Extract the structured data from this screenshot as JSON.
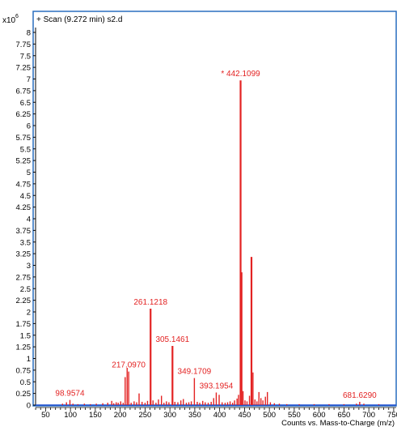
{
  "window": {
    "scale_exponent_label": "x10",
    "scale_exponent_power": "6",
    "scan_title": "+ Scan (9.272 min) s2.d"
  },
  "colors": {
    "spectrum": "#e32222",
    "frame_blue": "#2a6fbf",
    "axis": "#000000",
    "baseline_blue": "#1f4fd0",
    "text": "#000000",
    "label_red": "#e32222"
  },
  "chart_data": {
    "type": "bar",
    "title": "+ Scan (9.272 min) s2.d",
    "xlabel": "Counts vs. Mass-to-Charge (m/z)",
    "ylabel": "",
    "y_multiplier": "x10^6",
    "xlim": [
      25,
      755
    ],
    "ylim": [
      0,
      8.1
    ],
    "x_ticks": [
      50,
      100,
      150,
      200,
      250,
      300,
      350,
      400,
      450,
      500,
      550,
      600,
      650,
      700,
      750
    ],
    "y_ticks": [
      0,
      0.25,
      0.5,
      0.75,
      1,
      1.25,
      1.5,
      1.75,
      2,
      2.25,
      2.5,
      2.75,
      3,
      3.25,
      3.5,
      3.75,
      4,
      4.25,
      4.5,
      4.75,
      5,
      5.25,
      5.5,
      5.75,
      6,
      6.25,
      6.5,
      6.75,
      7,
      7.25,
      7.5,
      7.75,
      8
    ],
    "y_tick_labels": [
      "0",
      "0.25",
      "0.5",
      "0.75",
      "1",
      "1.25",
      "1.5",
      "1.75",
      "2",
      "2.25",
      "2.5",
      "2.75",
      "3",
      "3.25",
      "3.5",
      "3.75",
      "4",
      "4.25",
      "4.5",
      "4.75",
      "5",
      "5.25",
      "5.5",
      "5.75",
      "6",
      "6.25",
      "6.5",
      "6.75",
      "7",
      "7.25",
      "7.5",
      "7.75",
      "8"
    ],
    "grid": false,
    "peaks": [
      {
        "x": 84,
        "y": 0.03
      },
      {
        "x": 92,
        "y": 0.06
      },
      {
        "x": 98.9574,
        "y": 0.11
      },
      {
        "x": 105,
        "y": 0.03
      },
      {
        "x": 115,
        "y": 0.02
      },
      {
        "x": 128,
        "y": 0.03
      },
      {
        "x": 140,
        "y": 0.02
      },
      {
        "x": 152,
        "y": 0.03
      },
      {
        "x": 165,
        "y": 0.04
      },
      {
        "x": 175,
        "y": 0.05
      },
      {
        "x": 183,
        "y": 0.09
      },
      {
        "x": 187,
        "y": 0.04
      },
      {
        "x": 192,
        "y": 0.06
      },
      {
        "x": 196,
        "y": 0.05
      },
      {
        "x": 201,
        "y": 0.08
      },
      {
        "x": 206,
        "y": 0.05
      },
      {
        "x": 210,
        "y": 0.6
      },
      {
        "x": 214,
        "y": 0.8
      },
      {
        "x": 217.097,
        "y": 0.72
      },
      {
        "x": 222,
        "y": 0.05
      },
      {
        "x": 228,
        "y": 0.08
      },
      {
        "x": 233,
        "y": 0.06
      },
      {
        "x": 238,
        "y": 0.25
      },
      {
        "x": 244,
        "y": 0.07
      },
      {
        "x": 250,
        "y": 0.05
      },
      {
        "x": 255,
        "y": 0.09
      },
      {
        "x": 261.1218,
        "y": 2.07
      },
      {
        "x": 266,
        "y": 0.1
      },
      {
        "x": 272,
        "y": 0.05
      },
      {
        "x": 277,
        "y": 0.12
      },
      {
        "x": 283,
        "y": 0.2
      },
      {
        "x": 288,
        "y": 0.05
      },
      {
        "x": 293,
        "y": 0.08
      },
      {
        "x": 298,
        "y": 0.06
      },
      {
        "x": 305.1461,
        "y": 1.27
      },
      {
        "x": 310,
        "y": 0.07
      },
      {
        "x": 316,
        "y": 0.06
      },
      {
        "x": 322,
        "y": 0.1
      },
      {
        "x": 327,
        "y": 0.13
      },
      {
        "x": 333,
        "y": 0.05
      },
      {
        "x": 338,
        "y": 0.06
      },
      {
        "x": 343,
        "y": 0.08
      },
      {
        "x": 349.1709,
        "y": 0.58
      },
      {
        "x": 355,
        "y": 0.07
      },
      {
        "x": 360,
        "y": 0.05
      },
      {
        "x": 366,
        "y": 0.09
      },
      {
        "x": 371,
        "y": 0.06
      },
      {
        "x": 377,
        "y": 0.05
      },
      {
        "x": 383,
        "y": 0.07
      },
      {
        "x": 388,
        "y": 0.15
      },
      {
        "x": 393.1954,
        "y": 0.27
      },
      {
        "x": 399,
        "y": 0.22
      },
      {
        "x": 405,
        "y": 0.06
      },
      {
        "x": 411,
        "y": 0.05
      },
      {
        "x": 416,
        "y": 0.06
      },
      {
        "x": 421,
        "y": 0.08
      },
      {
        "x": 426,
        "y": 0.05
      },
      {
        "x": 430,
        "y": 0.1
      },
      {
        "x": 435,
        "y": 0.14
      },
      {
        "x": 438,
        "y": 0.22
      },
      {
        "x": 442.1099,
        "y": 6.97
      },
      {
        "x": 444,
        "y": 2.85
      },
      {
        "x": 447,
        "y": 0.3
      },
      {
        "x": 451,
        "y": 0.1
      },
      {
        "x": 455,
        "y": 0.08
      },
      {
        "x": 460,
        "y": 0.2
      },
      {
        "x": 464,
        "y": 3.18
      },
      {
        "x": 467,
        "y": 0.7
      },
      {
        "x": 471,
        "y": 0.12
      },
      {
        "x": 475,
        "y": 0.08
      },
      {
        "x": 479,
        "y": 0.28
      },
      {
        "x": 483,
        "y": 0.15
      },
      {
        "x": 487,
        "y": 0.1
      },
      {
        "x": 492,
        "y": 0.18
      },
      {
        "x": 496,
        "y": 0.28
      },
      {
        "x": 502,
        "y": 0.06
      },
      {
        "x": 510,
        "y": 0.04
      },
      {
        "x": 520,
        "y": 0.03
      },
      {
        "x": 535,
        "y": 0.02
      },
      {
        "x": 560,
        "y": 0.02
      },
      {
        "x": 590,
        "y": 0.02
      },
      {
        "x": 620,
        "y": 0.02
      },
      {
        "x": 650,
        "y": 0.02
      },
      {
        "x": 675,
        "y": 0.03
      },
      {
        "x": 681.629,
        "y": 0.07
      },
      {
        "x": 690,
        "y": 0.03
      },
      {
        "x": 720,
        "y": 0.02
      }
    ],
    "annotations": [
      {
        "x": 98.9574,
        "label": "98.9574"
      },
      {
        "x": 217.097,
        "label": "217.0970"
      },
      {
        "x": 261.1218,
        "label": "261.1218"
      },
      {
        "x": 305.1461,
        "label": "305.1461"
      },
      {
        "x": 349.1709,
        "label": "349.1709"
      },
      {
        "x": 393.1954,
        "label": "393.1954"
      },
      {
        "x": 442.1099,
        "label": "* 442.1099"
      },
      {
        "x": 681.629,
        "label": "681.6290"
      }
    ]
  }
}
